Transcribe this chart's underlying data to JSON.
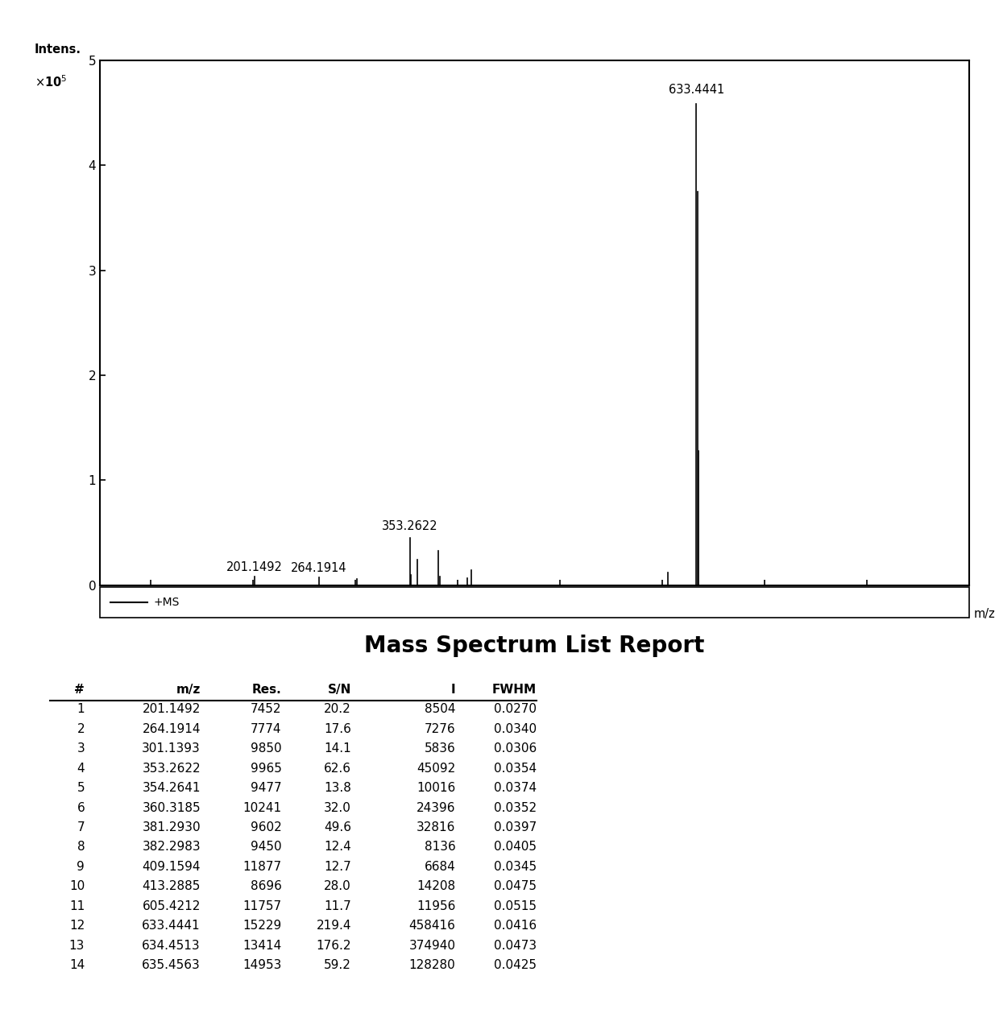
{
  "peaks": [
    {
      "mz": 201.1492,
      "intensity": 8504,
      "label": "201.1492"
    },
    {
      "mz": 264.1914,
      "intensity": 7276,
      "label": "264.1914"
    },
    {
      "mz": 301.1393,
      "intensity": 5836,
      "label": null
    },
    {
      "mz": 353.2622,
      "intensity": 45092,
      "label": "353.2622"
    },
    {
      "mz": 354.2641,
      "intensity": 10016,
      "label": null
    },
    {
      "mz": 360.3185,
      "intensity": 24396,
      "label": null
    },
    {
      "mz": 381.293,
      "intensity": 32816,
      "label": null
    },
    {
      "mz": 382.2983,
      "intensity": 8136,
      "label": null
    },
    {
      "mz": 409.1594,
      "intensity": 6684,
      "label": null
    },
    {
      "mz": 413.2885,
      "intensity": 14208,
      "label": null
    },
    {
      "mz": 605.4212,
      "intensity": 11956,
      "label": null
    },
    {
      "mz": 633.4441,
      "intensity": 458416,
      "label": "633.4441"
    },
    {
      "mz": 634.4513,
      "intensity": 374940,
      "label": null
    },
    {
      "mz": 635.4563,
      "intensity": 128280,
      "label": null
    }
  ],
  "xlim": [
    50,
    900
  ],
  "ylim": [
    0,
    500000
  ],
  "xticks": [
    100,
    200,
    300,
    400,
    500,
    600,
    700,
    800
  ],
  "yticks": [
    0,
    100000,
    200000,
    300000,
    400000,
    500000
  ],
  "ytick_labels": [
    "0",
    "1",
    "2",
    "3",
    "4",
    "5"
  ],
  "xlabel": "m/z",
  "legend_label": "+MS",
  "title": "Mass Spectrum List Report",
  "table_headers": [
    "#",
    "m/z",
    "Res.",
    "S/N",
    "I",
    "FWHM"
  ],
  "table_data": [
    [
      "1",
      "201.1492",
      "7452",
      "20.2",
      "8504",
      "0.0270"
    ],
    [
      "2",
      "264.1914",
      "7774",
      "17.6",
      "7276",
      "0.0340"
    ],
    [
      "3",
      "301.1393",
      "9850",
      "14.1",
      "5836",
      "0.0306"
    ],
    [
      "4",
      "353.2622",
      "9965",
      "62.6",
      "45092",
      "0.0354"
    ],
    [
      "5",
      "354.2641",
      "9477",
      "13.8",
      "10016",
      "0.0374"
    ],
    [
      "6",
      "360.3185",
      "10241",
      "32.0",
      "24396",
      "0.0352"
    ],
    [
      "7",
      "381.2930",
      "9602",
      "49.6",
      "32816",
      "0.0397"
    ],
    [
      "8",
      "382.2983",
      "9450",
      "12.4",
      "8136",
      "0.0405"
    ],
    [
      "9",
      "409.1594",
      "11877",
      "12.7",
      "6684",
      "0.0345"
    ],
    [
      "10",
      "413.2885",
      "8696",
      "28.0",
      "14208",
      "0.0475"
    ],
    [
      "11",
      "605.4212",
      "11757",
      "11.7",
      "11956",
      "0.0515"
    ],
    [
      "12",
      "633.4441",
      "15229",
      "219.4",
      "458416",
      "0.0416"
    ],
    [
      "13",
      "634.4513",
      "13414",
      "176.2",
      "374940",
      "0.0473"
    ],
    [
      "14",
      "635.4563",
      "14953",
      "59.2",
      "128280",
      "0.0425"
    ]
  ],
  "label_offsets": {
    "201.1492": 3000,
    "264.1914": 3000,
    "353.2622": 5000,
    "633.4441": 8000
  },
  "background_color": "#ffffff",
  "line_color": "#000000",
  "label_fontsize": 10.5,
  "tick_fontsize": 11,
  "title_fontsize": 20,
  "table_fontsize": 11,
  "col_widths": [
    0.06,
    0.2,
    0.14,
    0.12,
    0.18,
    0.14
  ]
}
